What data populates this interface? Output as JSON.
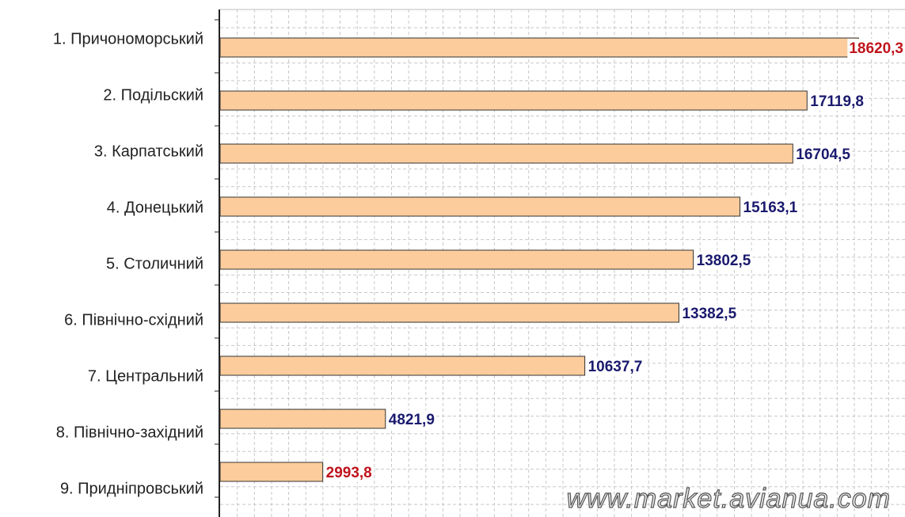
{
  "chart_data": {
    "type": "bar",
    "orientation": "horizontal",
    "categories": [
      "1. Причономорський",
      "2. Подільский",
      "3. Карпатський",
      "4. Донецький",
      "5. Столичний",
      "6. Північно-східний",
      "7. Центральний",
      "8. Північно-західний",
      "9. Придніпровський"
    ],
    "values": [
      18620.3,
      17119.8,
      16704.5,
      15163.1,
      13802.5,
      13382.5,
      10637.7,
      4821.9,
      2993.8
    ],
    "value_labels": [
      "18620,3",
      "17119,8",
      "16704,5",
      "15163,1",
      "13802,5",
      "13382,5",
      "10637,7",
      "4821,9",
      "2993,8"
    ],
    "value_label_colors": [
      "#c0141c",
      "#1a1a6e",
      "#1a1a6e",
      "#1a1a6e",
      "#1a1a6e",
      "#1a1a6e",
      "#1a1a6e",
      "#1a1a6e",
      "#c0141c"
    ],
    "color": "#fccc9c",
    "xlim": [
      0,
      20000
    ],
    "xticks": [
      0,
      500,
      1000,
      1500,
      2000,
      2500,
      3000,
      3500,
      4000,
      4500,
      5000,
      5500,
      6000,
      6500,
      7000,
      7500,
      8000,
      8500,
      9000,
      9500,
      10000,
      10500,
      11000,
      11500,
      12000,
      12500,
      13000,
      13500,
      14000,
      14500,
      15000,
      15500,
      16000,
      16500,
      17000,
      17500,
      18000,
      18500,
      19000,
      19500,
      20000
    ],
    "grid": true,
    "watermark": "www.market.avianua.com"
  }
}
